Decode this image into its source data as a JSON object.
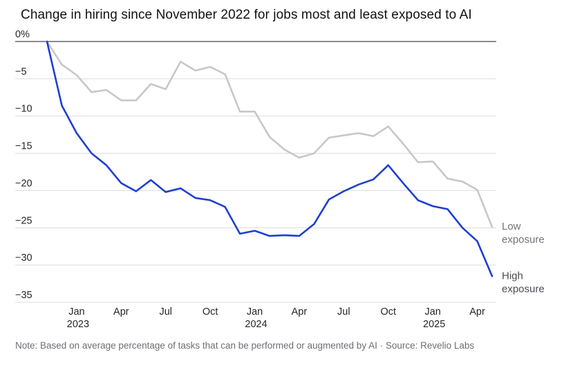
{
  "note": "Note: Based on average percentage of tasks that can be performed or augmented by AI · Source: Revelio Labs",
  "chart_data": {
    "type": "line",
    "title": "Change in hiring since November 2022 for jobs most and least exposed to AI",
    "xlabel": "",
    "ylabel": "Change in hiring (%)",
    "x_unit": "month",
    "x_months": [
      "Nov 2022",
      "Dec 2022",
      "Jan 2023",
      "Feb 2023",
      "Mar 2023",
      "Apr 2023",
      "May 2023",
      "Jun 2023",
      "Jul 2023",
      "Aug 2023",
      "Sep 2023",
      "Oct 2023",
      "Nov 2023",
      "Dec 2023",
      "Jan 2024",
      "Feb 2024",
      "Mar 2024",
      "Apr 2024",
      "May 2024",
      "Jun 2024",
      "Jul 2024",
      "Aug 2024",
      "Sep 2024",
      "Oct 2024",
      "Nov 2024",
      "Dec 2024",
      "Jan 2025",
      "Feb 2025",
      "Mar 2025",
      "Apr 2025",
      "May 2025"
    ],
    "series": [
      {
        "name": "Low exposure",
        "label_lines": [
          "Low",
          "exposure"
        ],
        "color": "#c7c7c7",
        "label_color": "#73737a",
        "values": [
          0,
          -3.1,
          -4.5,
          -6.8,
          -6.5,
          -7.9,
          -7.9,
          -5.7,
          -6.4,
          -2.7,
          -3.9,
          -3.4,
          -4.4,
          -9.4,
          -9.4,
          -12.8,
          -14.5,
          -15.6,
          -15.0,
          -12.9,
          -12.6,
          -12.3,
          -12.7,
          -11.4,
          -13.7,
          -16.2,
          -16.1,
          -18.4,
          -18.8,
          -19.9,
          -24.9
        ]
      },
      {
        "name": "High exposure",
        "label_lines": [
          "High",
          "exposure"
        ],
        "color": "#1d3fd2",
        "label_color": "#4b4b52",
        "values": [
          0,
          -8.6,
          -12.3,
          -15.0,
          -16.6,
          -19.0,
          -20.1,
          -18.6,
          -20.2,
          -19.7,
          -21.0,
          -21.3,
          -22.2,
          -25.8,
          -25.4,
          -26.1,
          -26.0,
          -26.1,
          -24.5,
          -21.2,
          -20.1,
          -19.2,
          -18.5,
          -16.6,
          -19.0,
          -21.3,
          -22.1,
          -22.5,
          -25.0,
          -26.8,
          -31.5
        ]
      }
    ],
    "ylim": [
      -35,
      0
    ],
    "yticks": [
      {
        "value": 0,
        "label": "0%"
      },
      {
        "value": -5,
        "label": "−5"
      },
      {
        "value": -10,
        "label": "−10"
      },
      {
        "value": -15,
        "label": "−15"
      },
      {
        "value": -20,
        "label": "−20"
      },
      {
        "value": -25,
        "label": "−25"
      },
      {
        "value": -30,
        "label": "−30"
      },
      {
        "value": -35,
        "label": "−35"
      }
    ],
    "xticks": [
      {
        "index": 2,
        "label": "Jan",
        "year": "2023"
      },
      {
        "index": 5,
        "label": "Apr"
      },
      {
        "index": 8,
        "label": "Jul"
      },
      {
        "index": 11,
        "label": "Oct"
      },
      {
        "index": 14,
        "label": "Jan",
        "year": "2024"
      },
      {
        "index": 17,
        "label": "Apr"
      },
      {
        "index": 20,
        "label": "Jul"
      },
      {
        "index": 23,
        "label": "Oct"
      },
      {
        "index": 26,
        "label": "Jan",
        "year": "2025"
      },
      {
        "index": 29,
        "label": "Apr"
      }
    ],
    "grid": true,
    "legend_position": "right-end",
    "baseline_color": "#141414",
    "gridline_color": "#dcdcdc"
  }
}
